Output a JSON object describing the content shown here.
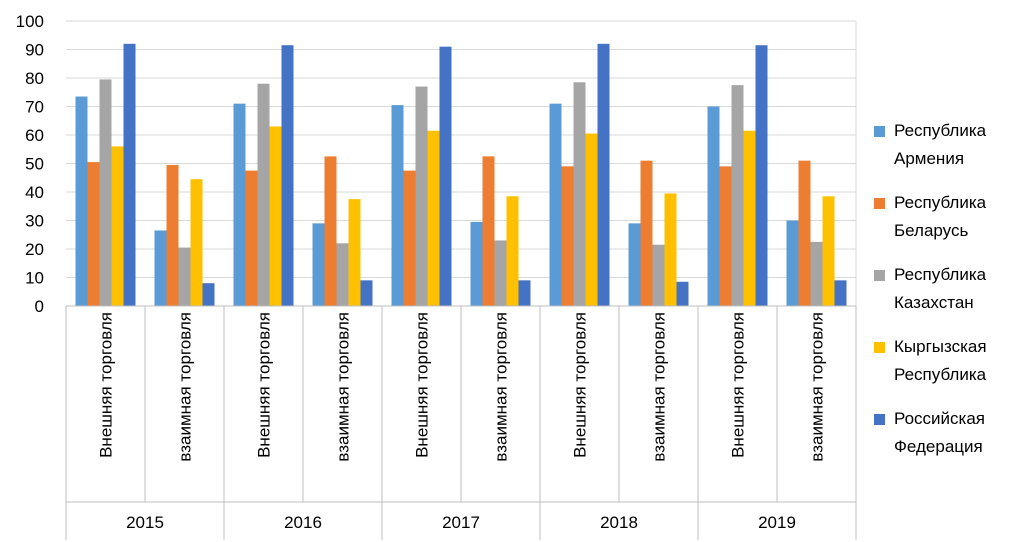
{
  "chart_data": {
    "type": "bar",
    "title": "",
    "xlabel": "",
    "ylabel": "",
    "ylim": [
      0,
      100
    ],
    "yticks": [
      0,
      10,
      20,
      30,
      40,
      50,
      60,
      70,
      80,
      90,
      100
    ],
    "grid": true,
    "legend_position": "right",
    "categories": [
      {
        "year": "2015",
        "label": "Внешняя торговля"
      },
      {
        "year": "2015",
        "label": "взаимная торговля"
      },
      {
        "year": "2016",
        "label": "Внешняя торговля"
      },
      {
        "year": "2016",
        "label": "взаимная торговля"
      },
      {
        "year": "2017",
        "label": "Внешняя торговля"
      },
      {
        "year": "2017",
        "label": "взаимная торговля"
      },
      {
        "year": "2018",
        "label": "Внешняя торговля"
      },
      {
        "year": "2018",
        "label": "взаимная торговля"
      },
      {
        "year": "2019",
        "label": "Внешняя торговля"
      },
      {
        "year": "2019",
        "label": "взаимная торговля"
      }
    ],
    "years": [
      "2015",
      "2016",
      "2017",
      "2018",
      "2019"
    ],
    "series": [
      {
        "name": "Республика Армения",
        "legend_lines": [
          "Республика",
          "Армения"
        ],
        "color": "#5B9BD5",
        "values": [
          73.5,
          26.5,
          71,
          29,
          70.5,
          29.5,
          71,
          29,
          70,
          30
        ]
      },
      {
        "name": "Республика Беларусь",
        "legend_lines": [
          "Республика",
          "Беларусь"
        ],
        "color": "#ED7D31",
        "values": [
          50.5,
          49.5,
          47.5,
          52.5,
          47.5,
          52.5,
          49,
          51,
          49,
          51
        ]
      },
      {
        "name": "Республика Казахстан",
        "legend_lines": [
          "Республика",
          "Казахстан"
        ],
        "color": "#A5A5A5",
        "values": [
          79.5,
          20.5,
          78,
          22,
          77,
          23,
          78.5,
          21.5,
          77.5,
          22.5
        ]
      },
      {
        "name": "Кыргызская Республика",
        "legend_lines": [
          "Кыргызская",
          "Республика"
        ],
        "color": "#FFC000",
        "values": [
          56,
          44.5,
          63,
          37.5,
          61.5,
          38.5,
          60.5,
          39.5,
          61.5,
          38.5
        ]
      },
      {
        "name": "Российская Федерация",
        "legend_lines": [
          "Российская",
          "Федерация"
        ],
        "color": "#4472C4",
        "values": [
          92,
          8,
          91.5,
          9,
          91,
          9,
          92,
          8.5,
          91.5,
          9
        ]
      }
    ]
  }
}
